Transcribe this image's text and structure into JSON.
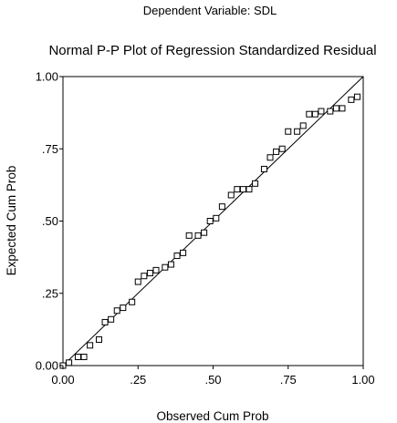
{
  "chart_data": {
    "type": "scatter",
    "subtitle": "Dependent Variable: SDL",
    "title": "Normal P-P Plot of Regression Standardized Residual",
    "xlabel": "Observed Cum Prob",
    "ylabel": "Expected Cum Prob",
    "xlim": [
      0,
      1
    ],
    "ylim": [
      0,
      1
    ],
    "x_ticks": [
      {
        "value": 0.0,
        "label": "0.00"
      },
      {
        "value": 0.25,
        "label": ".25"
      },
      {
        "value": 0.5,
        "label": ".50"
      },
      {
        "value": 0.75,
        "label": ".75"
      },
      {
        "value": 1.0,
        "label": "1.00"
      }
    ],
    "y_ticks": [
      {
        "value": 0.0,
        "label": "0.00"
      },
      {
        "value": 0.25,
        "label": ".25"
      },
      {
        "value": 0.5,
        "label": ".50"
      },
      {
        "value": 0.75,
        "label": ".75"
      },
      {
        "value": 1.0,
        "label": "1.00"
      }
    ],
    "reference_line": {
      "from": [
        0,
        0
      ],
      "to": [
        1,
        1
      ]
    },
    "grid": false,
    "marker": "open-square",
    "points": [
      {
        "x": 0.0,
        "y": 0.0
      },
      {
        "x": 0.02,
        "y": 0.01
      },
      {
        "x": 0.05,
        "y": 0.03
      },
      {
        "x": 0.07,
        "y": 0.03
      },
      {
        "x": 0.09,
        "y": 0.07
      },
      {
        "x": 0.12,
        "y": 0.09
      },
      {
        "x": 0.14,
        "y": 0.15
      },
      {
        "x": 0.16,
        "y": 0.16
      },
      {
        "x": 0.18,
        "y": 0.19
      },
      {
        "x": 0.2,
        "y": 0.2
      },
      {
        "x": 0.23,
        "y": 0.22
      },
      {
        "x": 0.25,
        "y": 0.29
      },
      {
        "x": 0.27,
        "y": 0.31
      },
      {
        "x": 0.29,
        "y": 0.32
      },
      {
        "x": 0.31,
        "y": 0.33
      },
      {
        "x": 0.34,
        "y": 0.34
      },
      {
        "x": 0.36,
        "y": 0.35
      },
      {
        "x": 0.38,
        "y": 0.38
      },
      {
        "x": 0.4,
        "y": 0.39
      },
      {
        "x": 0.42,
        "y": 0.45
      },
      {
        "x": 0.45,
        "y": 0.45
      },
      {
        "x": 0.47,
        "y": 0.46
      },
      {
        "x": 0.49,
        "y": 0.5
      },
      {
        "x": 0.51,
        "y": 0.51
      },
      {
        "x": 0.53,
        "y": 0.55
      },
      {
        "x": 0.56,
        "y": 0.59
      },
      {
        "x": 0.58,
        "y": 0.61
      },
      {
        "x": 0.6,
        "y": 0.61
      },
      {
        "x": 0.62,
        "y": 0.61
      },
      {
        "x": 0.64,
        "y": 0.63
      },
      {
        "x": 0.67,
        "y": 0.68
      },
      {
        "x": 0.69,
        "y": 0.72
      },
      {
        "x": 0.71,
        "y": 0.74
      },
      {
        "x": 0.73,
        "y": 0.75
      },
      {
        "x": 0.75,
        "y": 0.81
      },
      {
        "x": 0.78,
        "y": 0.81
      },
      {
        "x": 0.8,
        "y": 0.83
      },
      {
        "x": 0.82,
        "y": 0.87
      },
      {
        "x": 0.84,
        "y": 0.87
      },
      {
        "x": 0.86,
        "y": 0.88
      },
      {
        "x": 0.89,
        "y": 0.88
      },
      {
        "x": 0.91,
        "y": 0.89
      },
      {
        "x": 0.93,
        "y": 0.89
      },
      {
        "x": 0.96,
        "y": 0.92
      },
      {
        "x": 0.98,
        "y": 0.93
      }
    ]
  }
}
